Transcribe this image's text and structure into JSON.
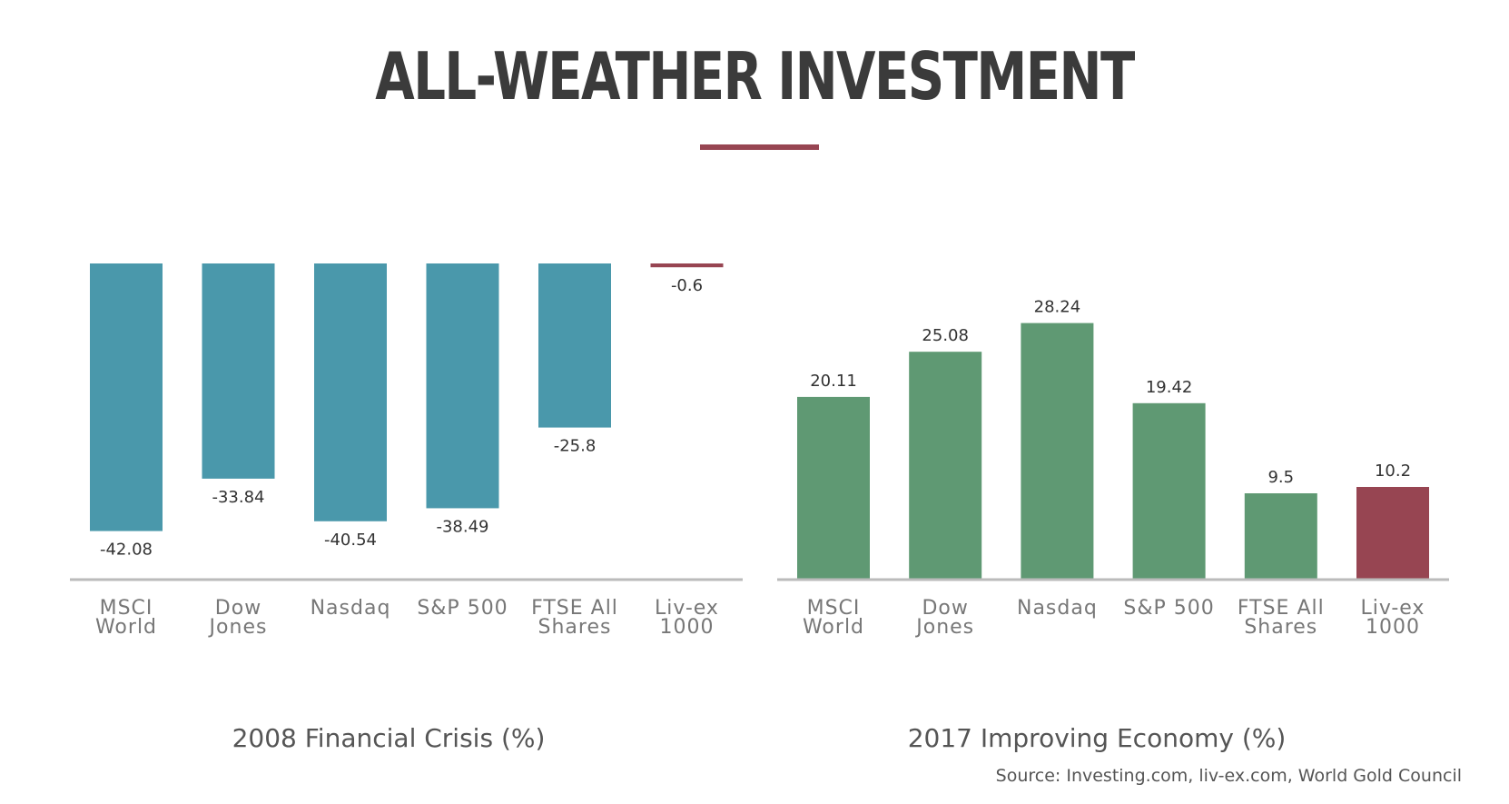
{
  "title": "ALL-WEATHER INVESTMENT",
  "source": "Source: Investing.com, liv-ex.com, World Gold Council",
  "colors": {
    "title": "#3b3b3b",
    "accent": "#974552",
    "crisis_bar": "#4a98ab",
    "growth_bar": "#5f9973",
    "highlight_bar": "#974552",
    "axis": "#bbbbbb",
    "tick_text": "#777777",
    "value_text": "#333333",
    "caption_text": "#555555"
  },
  "chart_data": [
    {
      "type": "bar",
      "title": "2008 Financial Crisis (%)",
      "categories": [
        [
          "MSCI",
          "World"
        ],
        [
          "Dow",
          "Jones"
        ],
        [
          "Nasdaq"
        ],
        [
          "S&P 500"
        ],
        [
          "FTSE All",
          "Shares"
        ],
        [
          "Liv-ex",
          "1000"
        ]
      ],
      "values": [
        -42.08,
        -33.84,
        -40.54,
        -38.49,
        -25.8,
        -0.6
      ],
      "value_labels": [
        "-42.08",
        "-33.84",
        "-40.54",
        "-38.49",
        "-25.8",
        "-0.6"
      ],
      "highlight_index": 5,
      "ylim": [
        -50,
        0
      ],
      "grid": false,
      "legend": "none"
    },
    {
      "type": "bar",
      "title": "2017 Improving Economy (%)",
      "categories": [
        [
          "MSCI",
          "World"
        ],
        [
          "Dow",
          "Jones"
        ],
        [
          "Nasdaq"
        ],
        [
          "S&P 500"
        ],
        [
          "FTSE All",
          "Shares"
        ],
        [
          "Liv-ex",
          "1000"
        ]
      ],
      "values": [
        20.11,
        25.08,
        28.24,
        19.42,
        9.5,
        10.2
      ],
      "value_labels": [
        "20.11",
        "25.08",
        "28.24",
        "19.42",
        "9.5",
        "10.2"
      ],
      "highlight_index": 5,
      "ylim": [
        0,
        30
      ],
      "grid": false,
      "legend": "none"
    }
  ]
}
